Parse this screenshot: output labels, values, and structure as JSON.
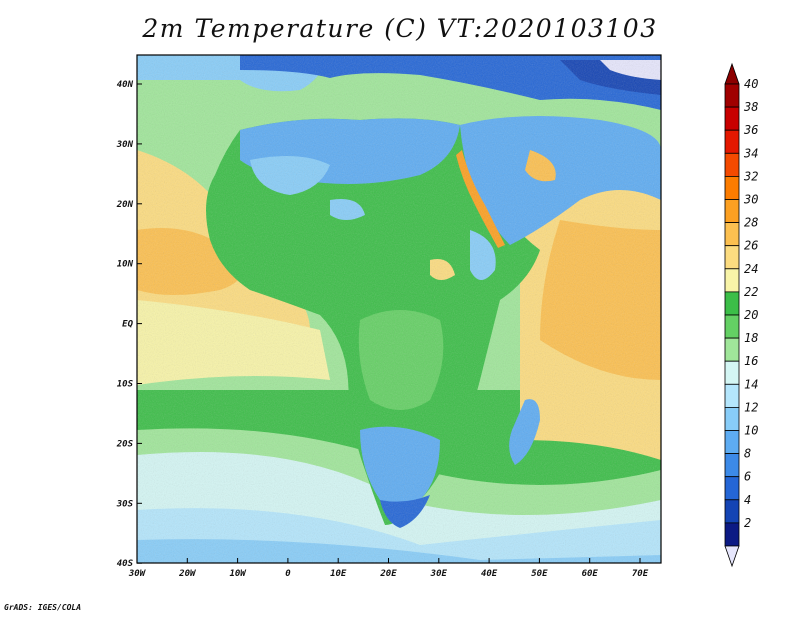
{
  "title": "2m Temperature (C) VT:2020103103",
  "credit": "GrADS: IGES/COLA",
  "map": {
    "lon_ticks": [
      "30W",
      "20W",
      "10W",
      "0",
      "10E",
      "20E",
      "30E",
      "40E",
      "50E",
      "60E",
      "70E"
    ],
    "lat_ticks": [
      "40N",
      "30N",
      "20N",
      "10N",
      "EQ",
      "10S",
      "20S",
      "30S",
      "40S"
    ],
    "lon_range": [
      -30,
      75
    ],
    "lat_range": [
      -40,
      44
    ]
  },
  "colorbar": {
    "levels": [
      "40",
      "38",
      "36",
      "34",
      "32",
      "30",
      "28",
      "26",
      "24",
      "22",
      "20",
      "18",
      "16",
      "14",
      "12",
      "10",
      "8",
      "6",
      "4",
      "2"
    ],
    "colors": [
      "#a00000",
      "#c80000",
      "#e41800",
      "#f44a00",
      "#fc7c00",
      "#fca022",
      "#fcc050",
      "#fcdc80",
      "#f8f4a8",
      "#3cbe48",
      "#64d064",
      "#a0e69a",
      "#d4f6f4",
      "#b4e6fc",
      "#88cdf8",
      "#5eacf2",
      "#3c8ae8",
      "#2466d6",
      "#1444b4",
      "#0c1a84"
    ],
    "top_color": "#8c0000",
    "bottom_color": "#e6e6fc"
  }
}
